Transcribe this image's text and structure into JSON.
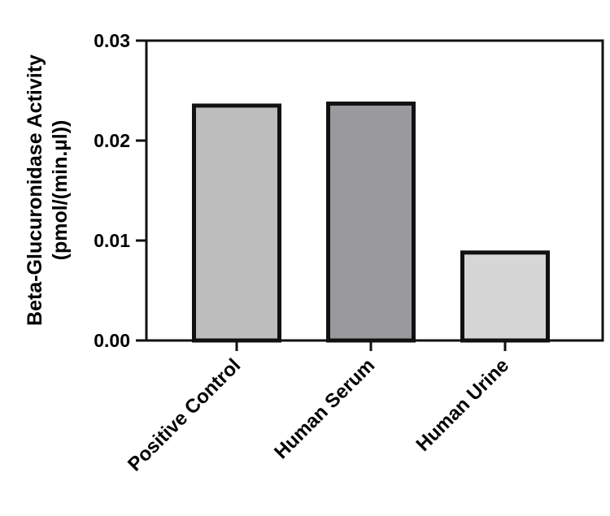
{
  "chart_data": {
    "type": "bar",
    "categories": [
      "Positive Control",
      "Human Serum",
      "Human Urine"
    ],
    "values": [
      0.0235,
      0.0237,
      0.0088
    ],
    "bar_colors": [
      "#bdbdbd",
      "#9a9a9e",
      "#d6d6d6"
    ],
    "title": "",
    "xlabel": "",
    "ylabel": "Beta-Glucuronidase Activity",
    "ylabel_unit": "(pmol/(min.µl))",
    "ylim": [
      0,
      0.03
    ],
    "yticks": [
      "0.00",
      "0.01",
      "0.02",
      "0.03"
    ],
    "ytick_values": [
      0,
      0.01,
      0.02,
      0.03
    ],
    "grid": false,
    "legend": "none"
  }
}
